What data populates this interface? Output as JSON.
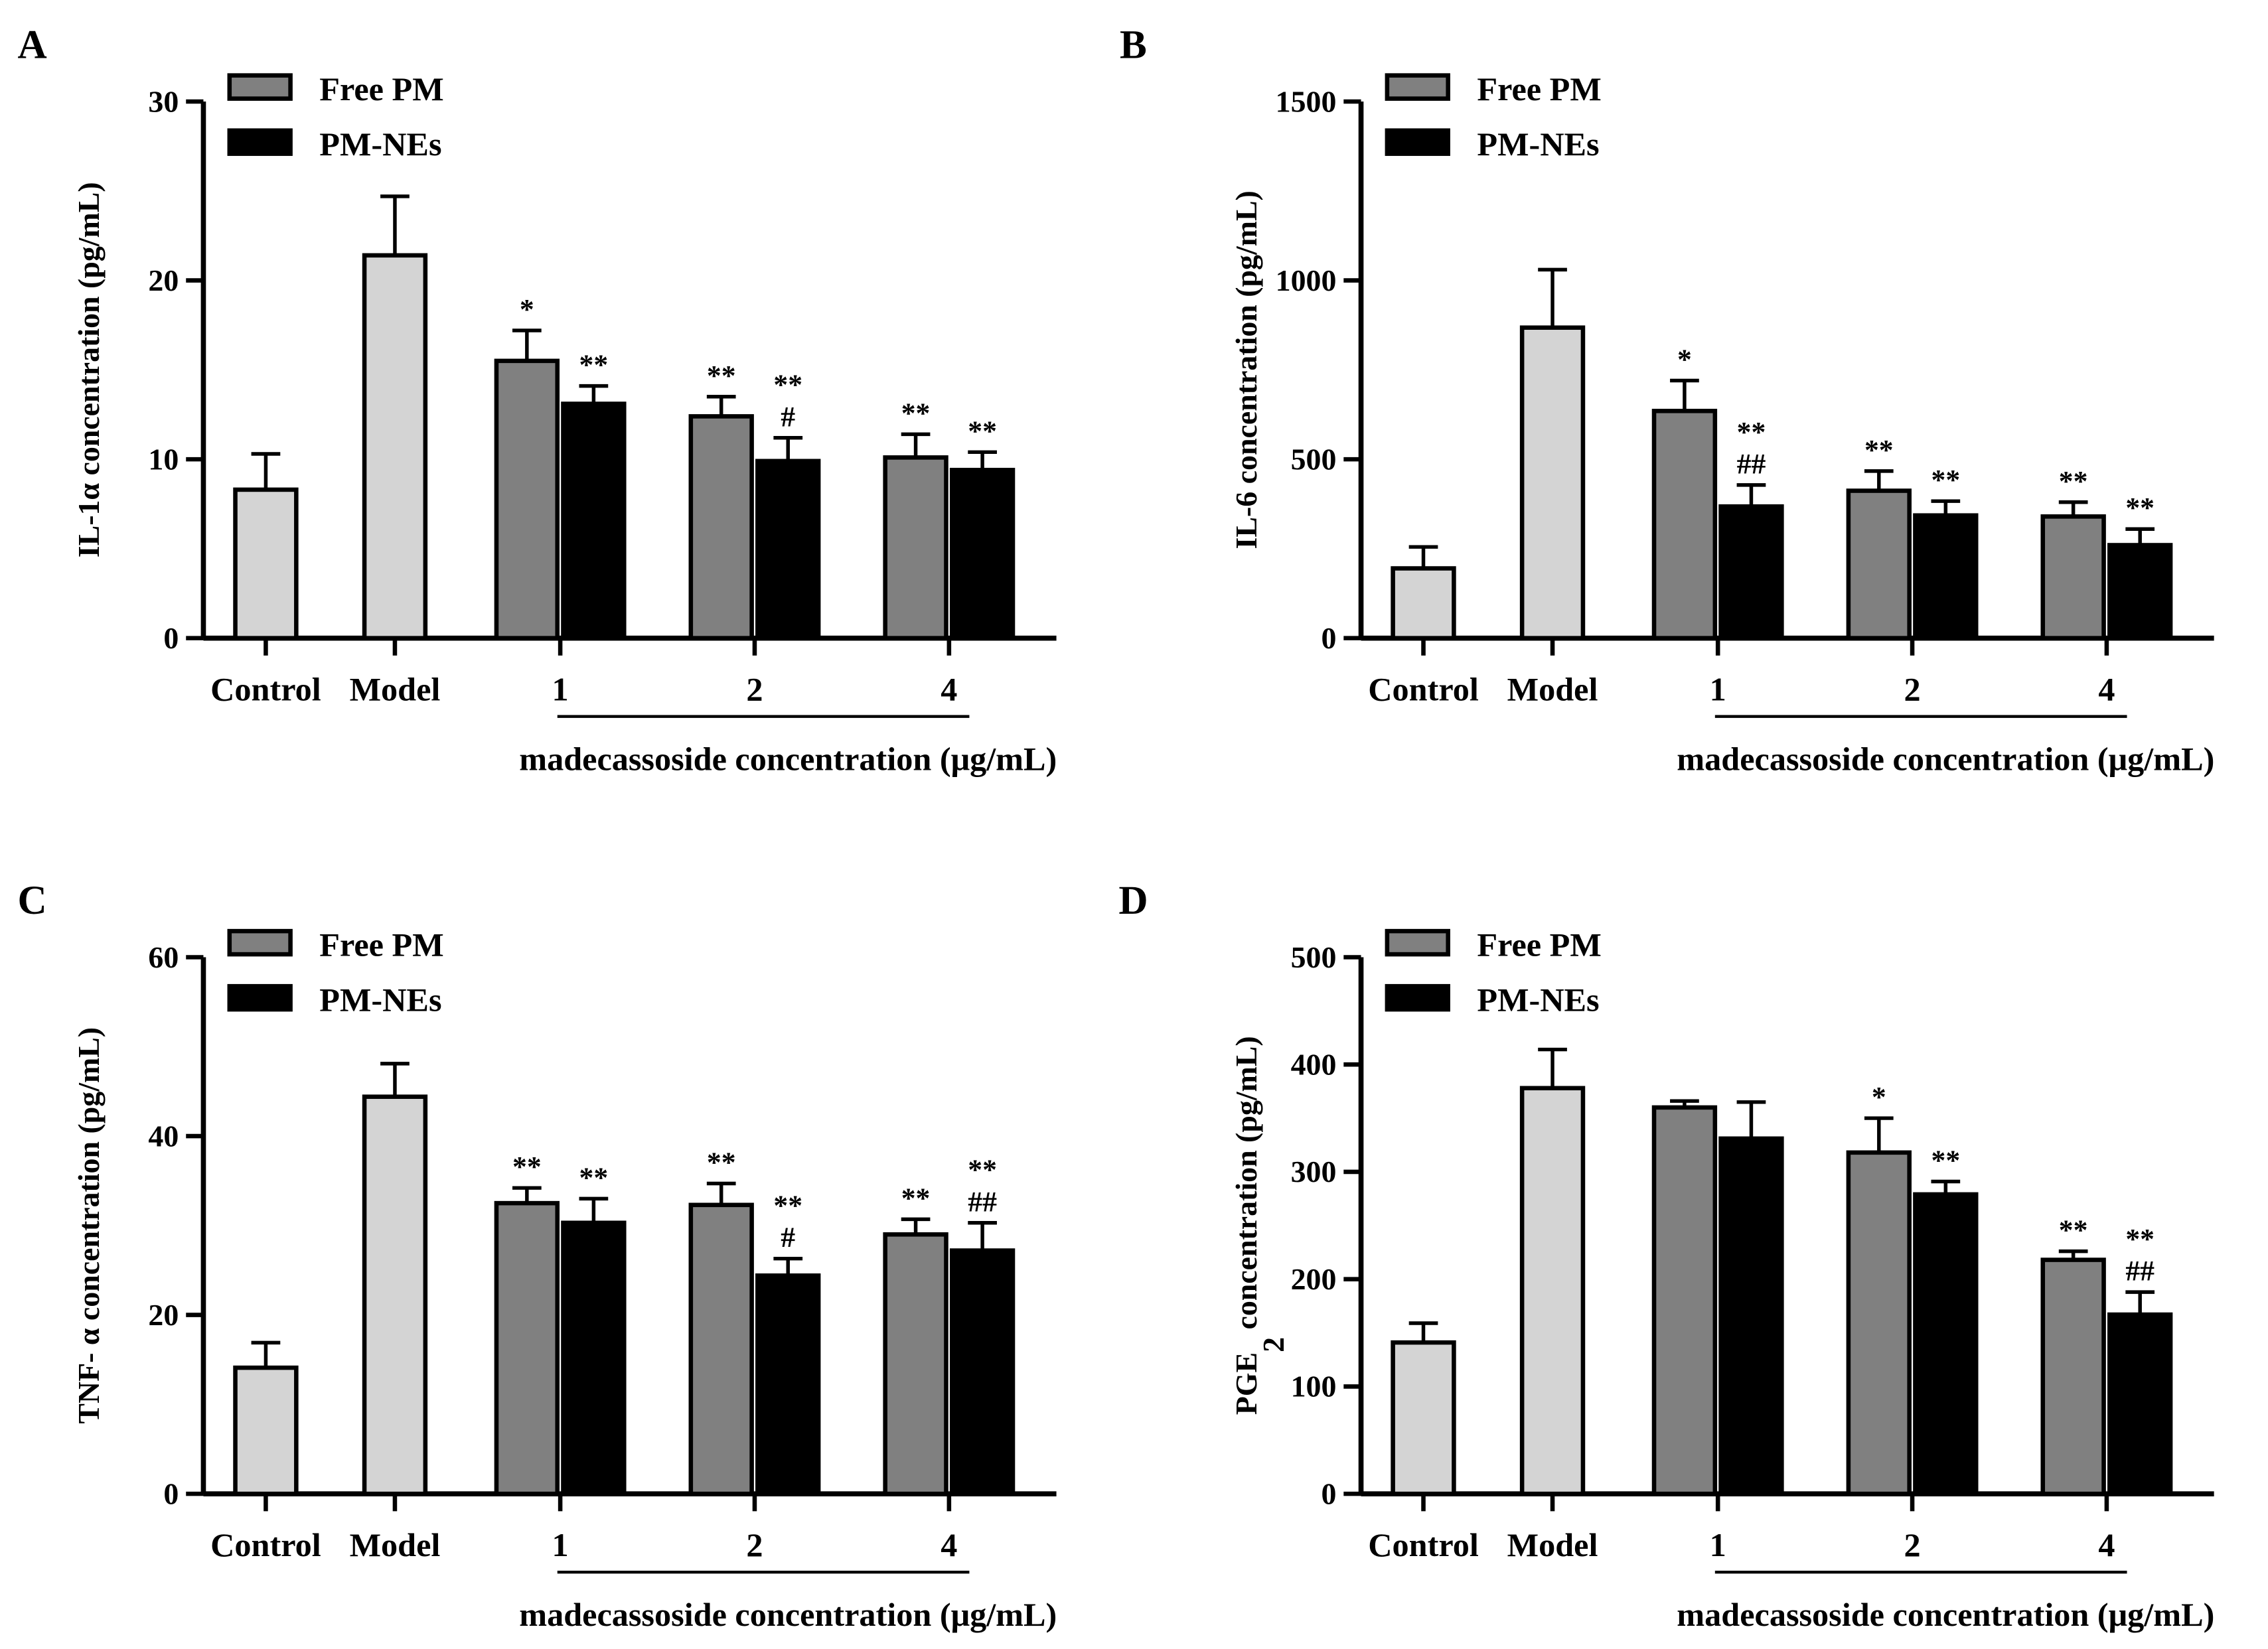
{
  "colors": {
    "control_model": "#d4d4d4",
    "free_pm": "#808080",
    "pm_nes": "#000000",
    "axis": "#000000"
  },
  "legend": {
    "free_pm": "Free PM",
    "pm_nes": "PM-NEs"
  },
  "chart_data": [
    {
      "panel": "A",
      "type": "bar",
      "ylabel": "IL-1α concentration (pg/mL)",
      "xlabel": "madecassoside concentration (μg/mL)",
      "ylim": [
        0,
        30
      ],
      "yticks": [
        "0",
        "10",
        "20",
        "30"
      ],
      "categories": [
        "Control",
        "Model",
        "1",
        "2",
        "4"
      ],
      "series": [
        {
          "name": "Control/Model",
          "values": [
            8.3,
            21.4,
            null,
            null,
            null
          ],
          "errors": [
            2.0,
            3.3,
            null,
            null,
            null
          ],
          "annotations": [
            "",
            "",
            "",
            "",
            ""
          ]
        },
        {
          "name": "Free PM",
          "values": [
            null,
            null,
            15.5,
            12.4,
            10.1
          ],
          "errors": [
            null,
            null,
            1.7,
            1.1,
            1.3
          ],
          "annotations": [
            "",
            "",
            "*",
            "**",
            "**"
          ]
        },
        {
          "name": "PM-NEs",
          "values": [
            null,
            null,
            13.1,
            9.9,
            9.4
          ],
          "errors": [
            null,
            null,
            1.0,
            1.3,
            1.0
          ],
          "annotations": [
            "",
            "",
            "**",
            "**|#",
            "**"
          ]
        }
      ]
    },
    {
      "panel": "B",
      "type": "bar",
      "ylabel": "IL-6 concentration (pg/mL)",
      "xlabel": "madecassoside concentration (μg/mL)",
      "ylim": [
        0,
        1500
      ],
      "yticks": [
        "0",
        "500",
        "1000",
        "1500"
      ],
      "categories": [
        "Control",
        "Model",
        "1",
        "2",
        "4"
      ],
      "series": [
        {
          "name": "Control/Model",
          "values": [
            195,
            868,
            null,
            null,
            null
          ],
          "errors": [
            60,
            162,
            null,
            null,
            null
          ],
          "annotations": [
            "",
            "",
            "",
            "",
            ""
          ]
        },
        {
          "name": "Free PM",
          "values": [
            null,
            null,
            635,
            412,
            340
          ],
          "errors": [
            null,
            null,
            85,
            55,
            40
          ],
          "annotations": [
            "",
            "",
            "*",
            "**",
            "**"
          ]
        },
        {
          "name": "PM-NEs",
          "values": [
            null,
            null,
            368,
            343,
            260
          ],
          "errors": [
            null,
            null,
            60,
            40,
            45
          ],
          "annotations": [
            "",
            "",
            "**|##",
            "**",
            "**"
          ]
        }
      ]
    },
    {
      "panel": "C",
      "type": "bar",
      "ylabel": "TNF- α concentration (pg/mL)",
      "xlabel": "madecassoside concentration (μg/mL)",
      "ylim": [
        0,
        60
      ],
      "yticks": [
        "0",
        "20",
        "40",
        "60"
      ],
      "categories": [
        "Control",
        "Model",
        "1",
        "2",
        "4"
      ],
      "series": [
        {
          "name": "Control/Model",
          "values": [
            14.1,
            44.4,
            null,
            null,
            null
          ],
          "errors": [
            2.8,
            3.7,
            null,
            null,
            null
          ],
          "annotations": [
            "",
            "",
            "",
            "",
            ""
          ]
        },
        {
          "name": "Free PM",
          "values": [
            null,
            null,
            32.5,
            32.3,
            29.0
          ],
          "errors": [
            null,
            null,
            1.7,
            2.4,
            1.7
          ],
          "annotations": [
            "",
            "",
            "**",
            "**",
            "**"
          ]
        },
        {
          "name": "PM-NEs",
          "values": [
            null,
            null,
            30.3,
            24.4,
            27.2
          ],
          "errors": [
            null,
            null,
            2.7,
            1.9,
            3.1
          ],
          "annotations": [
            "",
            "",
            "**",
            "**|#",
            "**|##"
          ]
        }
      ]
    },
    {
      "panel": "D",
      "type": "bar",
      "ylabel": "PGE",
      "ylabel_sub": "2",
      "ylabel_rest": " concentration (pg/mL)",
      "xlabel": "madecassoside concentration (μg/mL)",
      "ylim": [
        0,
        500
      ],
      "yticks": [
        "0",
        "100",
        "200",
        "300",
        "400",
        "500"
      ],
      "categories": [
        "Control",
        "Model",
        "1",
        "2",
        "4"
      ],
      "series": [
        {
          "name": "Control/Model",
          "values": [
            141,
            378,
            null,
            null,
            null
          ],
          "errors": [
            18,
            36,
            null,
            null,
            null
          ],
          "annotations": [
            "",
            "",
            "",
            "",
            ""
          ]
        },
        {
          "name": "Free PM",
          "values": [
            null,
            null,
            360,
            318,
            218
          ],
          "errors": [
            null,
            null,
            6,
            32,
            8
          ],
          "annotations": [
            "",
            "",
            "",
            "*",
            "**"
          ]
        },
        {
          "name": "PM-NEs",
          "values": [
            null,
            null,
            331,
            279,
            167
          ],
          "errors": [
            null,
            null,
            34,
            12,
            21
          ],
          "annotations": [
            "",
            "",
            "",
            "**",
            "**|##"
          ]
        }
      ]
    }
  ]
}
